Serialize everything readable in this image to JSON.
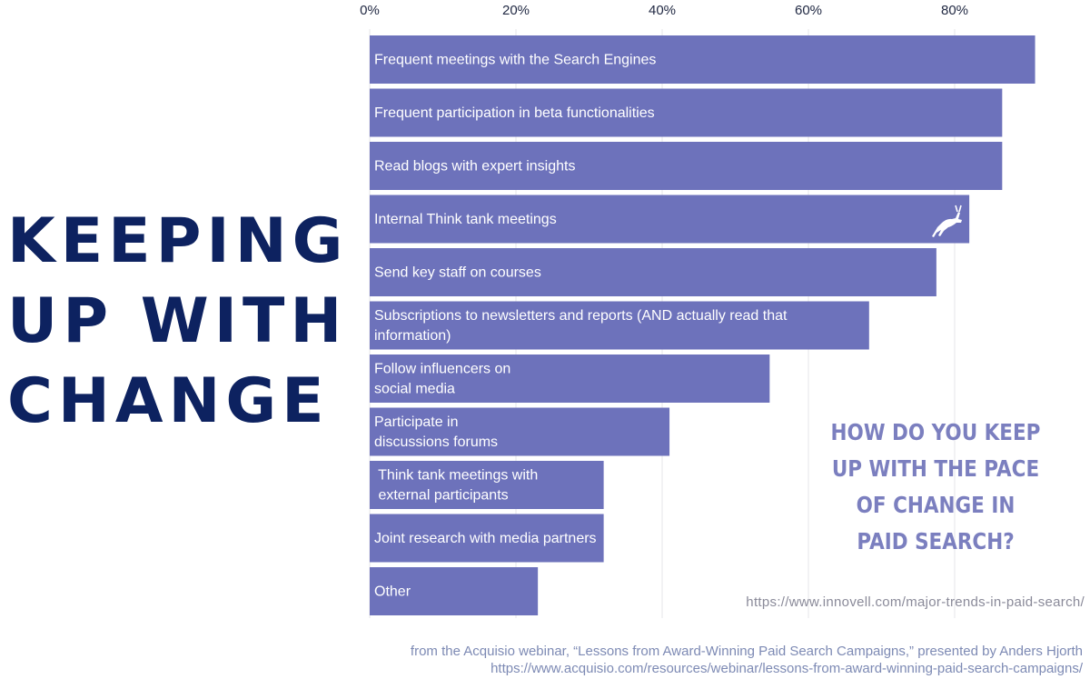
{
  "headline": {
    "lines": [
      "KEEPING",
      "UP WITH",
      "CHANGE"
    ]
  },
  "question": {
    "lines": [
      "HOW DO YOU KEEP",
      "UP WITH THE PACE",
      "OF CHANGE IN",
      "PAID SEARCH?"
    ]
  },
  "source_url": "https://www.innovell.com/major-trends-in-paid-search/",
  "footer": {
    "line1": "from the Acquisio webinar, “Lessons from Award-Winning Paid Search Campaigns,” presented by Anders Hjorth",
    "line2": "https://www.acquisio.com/resources/webinar/lessons-from-award-winning-paid-search-campaigns/"
  },
  "logo_icon": "gazelle-icon",
  "colors": {
    "bar": "#6d72bb",
    "headline": "#0d2260",
    "question": "#7b7fbf",
    "grid": "#e6e6ea"
  },
  "chart_data": {
    "type": "bar",
    "orientation": "horizontal",
    "title": "",
    "xlabel": "",
    "ylabel": "",
    "xlim": [
      0,
      100
    ],
    "ticks": [
      0,
      20,
      40,
      60,
      80
    ],
    "tick_labels": [
      "0%",
      "20%",
      "40%",
      "60%",
      "80%"
    ],
    "grid": true,
    "categories": [
      [
        "Frequent meetings with the Search Engines"
      ],
      [
        "Frequent participation in beta functionalities"
      ],
      [
        "Read blogs with expert insights"
      ],
      [
        "Internal Think tank meetings"
      ],
      [
        "Send key staff on courses"
      ],
      [
        "Subscriptions to newsletters and reports (AND actually read that",
        "information)"
      ],
      [
        "Follow influencers on",
        "social media"
      ],
      [
        "Participate in",
        "discussions forums"
      ],
      [
        " Think tank meetings with",
        " external participants"
      ],
      [
        "Joint research with media partners"
      ],
      [
        "Other"
      ]
    ],
    "values": [
      91,
      86.5,
      86.5,
      82,
      77.5,
      68.3,
      54.7,
      41,
      32,
      32,
      23
    ]
  }
}
